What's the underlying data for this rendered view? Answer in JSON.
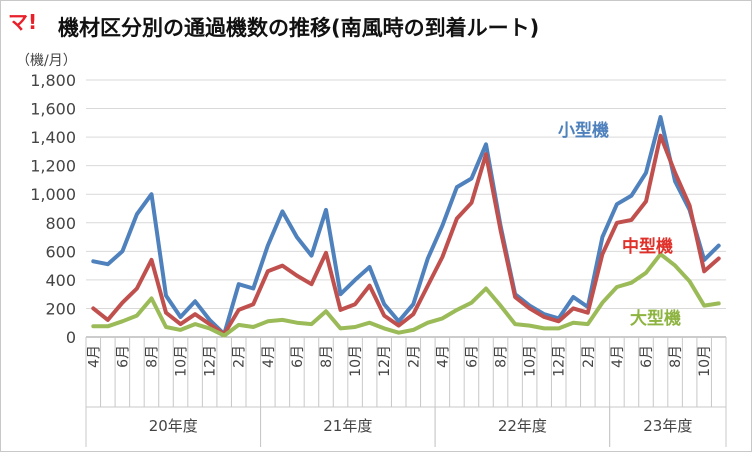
{
  "logo": "マ!",
  "unit_label": "（機/月）",
  "chart_data": {
    "type": "line",
    "title": "機材区分別の通過機数の推移(南風時の到着ルート)",
    "ylim": [
      0,
      1800
    ],
    "yticks": [
      "0",
      "200",
      "400",
      "600",
      "800",
      "1,000",
      "1,200",
      "1,400",
      "1,600",
      "1,800"
    ],
    "grid": true,
    "x_labels": [
      "4月",
      "",
      "6月",
      "",
      "8月",
      "",
      "10月",
      "",
      "12月",
      "",
      "2月",
      "",
      "4月",
      "",
      "6月",
      "",
      "8月",
      "",
      "10月",
      "",
      "12月",
      "",
      "2月",
      "",
      "4月",
      "",
      "6月",
      "",
      "8月",
      "",
      "10月",
      "",
      "12月",
      "",
      "2月",
      "",
      "4月",
      "",
      "6月",
      "",
      "8月",
      "",
      "10月",
      ""
    ],
    "groups": [
      {
        "label": "20年度",
        "start": 0,
        "count": 12
      },
      {
        "label": "21年度",
        "start": 12,
        "count": 12
      },
      {
        "label": "22年度",
        "start": 24,
        "count": 12
      },
      {
        "label": "23年度",
        "start": 36,
        "count": 8
      }
    ],
    "series": [
      {
        "name": "小型機",
        "color": "#4f81bd",
        "label_color": "#4f81bd",
        "values": [
          530,
          510,
          600,
          860,
          1000,
          290,
          140,
          250,
          120,
          20,
          370,
          340,
          640,
          880,
          700,
          570,
          890,
          300,
          400,
          490,
          230,
          110,
          230,
          550,
          780,
          1050,
          1110,
          1350,
          780,
          300,
          220,
          160,
          130,
          280,
          210,
          700,
          930,
          990,
          1150,
          1540,
          1090,
          890,
          540,
          640
        ]
      },
      {
        "name": "中型機",
        "color": "#c0504d",
        "label_color": "#e0302a",
        "values": [
          200,
          120,
          240,
          340,
          540,
          170,
          90,
          160,
          90,
          20,
          190,
          230,
          460,
          500,
          430,
          370,
          590,
          190,
          230,
          360,
          150,
          80,
          160,
          360,
          560,
          830,
          940,
          1280,
          750,
          280,
          200,
          140,
          110,
          200,
          170,
          580,
          800,
          820,
          950,
          1410,
          1150,
          920,
          460,
          550
        ]
      },
      {
        "name": "大型機",
        "color": "#9bbb59",
        "label_color": "#8db340",
        "values": [
          75,
          75,
          110,
          150,
          270,
          70,
          50,
          90,
          60,
          10,
          85,
          70,
          110,
          120,
          100,
          90,
          180,
          60,
          70,
          100,
          60,
          30,
          50,
          100,
          130,
          190,
          240,
          340,
          220,
          90,
          80,
          60,
          60,
          100,
          90,
          240,
          350,
          380,
          450,
          580,
          500,
          390,
          220,
          235
        ]
      }
    ]
  }
}
